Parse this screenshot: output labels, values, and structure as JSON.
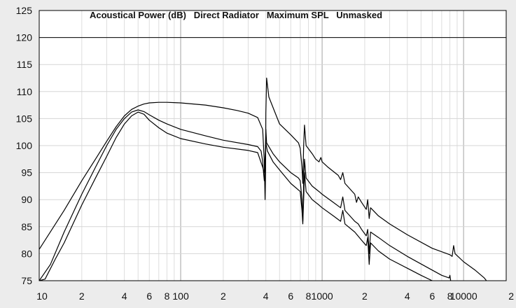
{
  "chart_data": {
    "type": "line",
    "title": "Acoustical Power (dB)   Direct Radiator   Maximum SPL   Unmasked",
    "xlabel": "",
    "ylabel": "",
    "x_scale": "log",
    "xlim": [
      10,
      20000
    ],
    "ylim": [
      75,
      125
    ],
    "grid": true,
    "y_ticks": [
      75,
      80,
      85,
      90,
      95,
      100,
      105,
      110,
      115,
      120,
      125
    ],
    "x_tick_labels": [
      {
        "x": 10,
        "label": "10"
      },
      {
        "x": 20,
        "label": "2"
      },
      {
        "x": 40,
        "label": "4"
      },
      {
        "x": 60,
        "label": "6"
      },
      {
        "x": 80,
        "label": "8"
      },
      {
        "x": 100,
        "label": "100"
      },
      {
        "x": 200,
        "label": "2"
      },
      {
        "x": 400,
        "label": "4"
      },
      {
        "x": 600,
        "label": "6"
      },
      {
        "x": 800,
        "label": "8"
      },
      {
        "x": 1000,
        "label": "1000"
      },
      {
        "x": 2000,
        "label": "2"
      },
      {
        "x": 4000,
        "label": "4"
      },
      {
        "x": 6000,
        "label": "6"
      },
      {
        "x": 8000,
        "label": "8"
      },
      {
        "x": 10000,
        "label": "10000"
      },
      {
        "x": 20000,
        "label": "2"
      }
    ],
    "reference_line": 120,
    "series": [
      {
        "values": [
          [
            10,
            80.8
          ],
          [
            15,
            88
          ],
          [
            20,
            93.5
          ],
          [
            25,
            97.5
          ],
          [
            30,
            100.8
          ],
          [
            35,
            103.5
          ],
          [
            40,
            105.5
          ],
          [
            45,
            106.7
          ],
          [
            50,
            107.3
          ],
          [
            55,
            107.7
          ],
          [
            60,
            107.9
          ],
          [
            70,
            108
          ],
          [
            80,
            108
          ],
          [
            100,
            107.9
          ],
          [
            150,
            107.5
          ],
          [
            200,
            107
          ],
          [
            250,
            106.5
          ],
          [
            300,
            106
          ],
          [
            350,
            105.2
          ],
          [
            380,
            103
          ],
          [
            390,
            97
          ],
          [
            395,
            90
          ],
          [
            398,
            95
          ],
          [
            400,
            106
          ],
          [
            405,
            112.5
          ],
          [
            420,
            109
          ],
          [
            500,
            104
          ],
          [
            600,
            102
          ],
          [
            680,
            100.5
          ],
          [
            700,
            99.5
          ],
          [
            720,
            96
          ],
          [
            730,
            93
          ],
          [
            740,
            100
          ],
          [
            750,
            103.8
          ],
          [
            770,
            100
          ],
          [
            850,
            98.5
          ],
          [
            900,
            97.5
          ],
          [
            950,
            97
          ],
          [
            980,
            97.8
          ],
          [
            1000,
            97
          ],
          [
            1100,
            96
          ],
          [
            1300,
            94.5
          ],
          [
            1350,
            93.7
          ],
          [
            1400,
            95
          ],
          [
            1450,
            93
          ],
          [
            1700,
            91
          ],
          [
            1750,
            89.5
          ],
          [
            1800,
            90.5
          ],
          [
            1900,
            89.5
          ],
          [
            2050,
            88.2
          ],
          [
            2100,
            90
          ],
          [
            2150,
            86.5
          ],
          [
            2200,
            88.5
          ],
          [
            2500,
            87
          ],
          [
            3000,
            85.5
          ],
          [
            4000,
            83.5
          ],
          [
            6000,
            81
          ],
          [
            8000,
            79.8
          ],
          [
            8300,
            79.5
          ],
          [
            8500,
            81.5
          ],
          [
            8700,
            80
          ],
          [
            10000,
            78.5
          ],
          [
            12000,
            77
          ],
          [
            14000,
            75.5
          ],
          [
            14500,
            75
          ]
        ]
      },
      {
        "values": [
          [
            10,
            75
          ],
          [
            12,
            78
          ],
          [
            15,
            84
          ],
          [
            20,
            91
          ],
          [
            25,
            96
          ],
          [
            30,
            100
          ],
          [
            35,
            103
          ],
          [
            40,
            105
          ],
          [
            45,
            106.2
          ],
          [
            50,
            106.6
          ],
          [
            55,
            106.3
          ],
          [
            60,
            105.7
          ],
          [
            70,
            104.7
          ],
          [
            80,
            104
          ],
          [
            100,
            103
          ],
          [
            150,
            101.8
          ],
          [
            200,
            101
          ],
          [
            300,
            100.2
          ],
          [
            350,
            99.8
          ],
          [
            370,
            99
          ],
          [
            380,
            97
          ],
          [
            385,
            95
          ],
          [
            390,
            93.5
          ],
          [
            395,
            96
          ],
          [
            400,
            103
          ],
          [
            405,
            100.5
          ],
          [
            450,
            98.5
          ],
          [
            500,
            97
          ],
          [
            600,
            95
          ],
          [
            680,
            94
          ],
          [
            700,
            93.5
          ],
          [
            720,
            90
          ],
          [
            730,
            86
          ],
          [
            740,
            93
          ],
          [
            750,
            97.5
          ],
          [
            770,
            94
          ],
          [
            850,
            92.5
          ],
          [
            950,
            91.5
          ],
          [
            1000,
            91
          ],
          [
            1200,
            89.5
          ],
          [
            1350,
            88.5
          ],
          [
            1400,
            90.5
          ],
          [
            1450,
            88
          ],
          [
            1700,
            86
          ],
          [
            1800,
            85.5
          ],
          [
            1900,
            84.5
          ],
          [
            2050,
            83.3
          ],
          [
            2100,
            84.5
          ],
          [
            2150,
            80
          ],
          [
            2200,
            84
          ],
          [
            2500,
            83
          ],
          [
            3000,
            81.5
          ],
          [
            4000,
            79.5
          ],
          [
            5500,
            77.5
          ],
          [
            7000,
            76
          ],
          [
            7900,
            75.5
          ],
          [
            8000,
            76
          ],
          [
            8100,
            75
          ]
        ]
      },
      {
        "values": [
          [
            10,
            75
          ],
          [
            11,
            75.3
          ],
          [
            13,
            79
          ],
          [
            15,
            82
          ],
          [
            20,
            89
          ],
          [
            25,
            94
          ],
          [
            30,
            98
          ],
          [
            35,
            101.5
          ],
          [
            40,
            104
          ],
          [
            45,
            105.5
          ],
          [
            50,
            106.2
          ],
          [
            55,
            105.8
          ],
          [
            60,
            104.7
          ],
          [
            70,
            103.3
          ],
          [
            80,
            102.3
          ],
          [
            100,
            101.3
          ],
          [
            150,
            100.3
          ],
          [
            200,
            99.7
          ],
          [
            300,
            99.1
          ],
          [
            350,
            98.7
          ],
          [
            380,
            96
          ],
          [
            390,
            95
          ],
          [
            395,
            97.5
          ],
          [
            400,
            100.5
          ],
          [
            410,
            99
          ],
          [
            450,
            97
          ],
          [
            500,
            95.5
          ],
          [
            600,
            93
          ],
          [
            700,
            91.5
          ],
          [
            720,
            88
          ],
          [
            730,
            85.5
          ],
          [
            740,
            90
          ],
          [
            750,
            95
          ],
          [
            770,
            91.5
          ],
          [
            850,
            90
          ],
          [
            950,
            89
          ],
          [
            1000,
            88.5
          ],
          [
            1200,
            87
          ],
          [
            1350,
            86
          ],
          [
            1400,
            88
          ],
          [
            1450,
            85.5
          ],
          [
            1700,
            84
          ],
          [
            1900,
            82.5
          ],
          [
            2050,
            81.5
          ],
          [
            2100,
            83
          ],
          [
            2150,
            78
          ],
          [
            2200,
            82
          ],
          [
            2500,
            80.5
          ],
          [
            3000,
            79
          ],
          [
            4000,
            77.3
          ],
          [
            5000,
            76
          ],
          [
            6000,
            75
          ]
        ]
      }
    ]
  }
}
